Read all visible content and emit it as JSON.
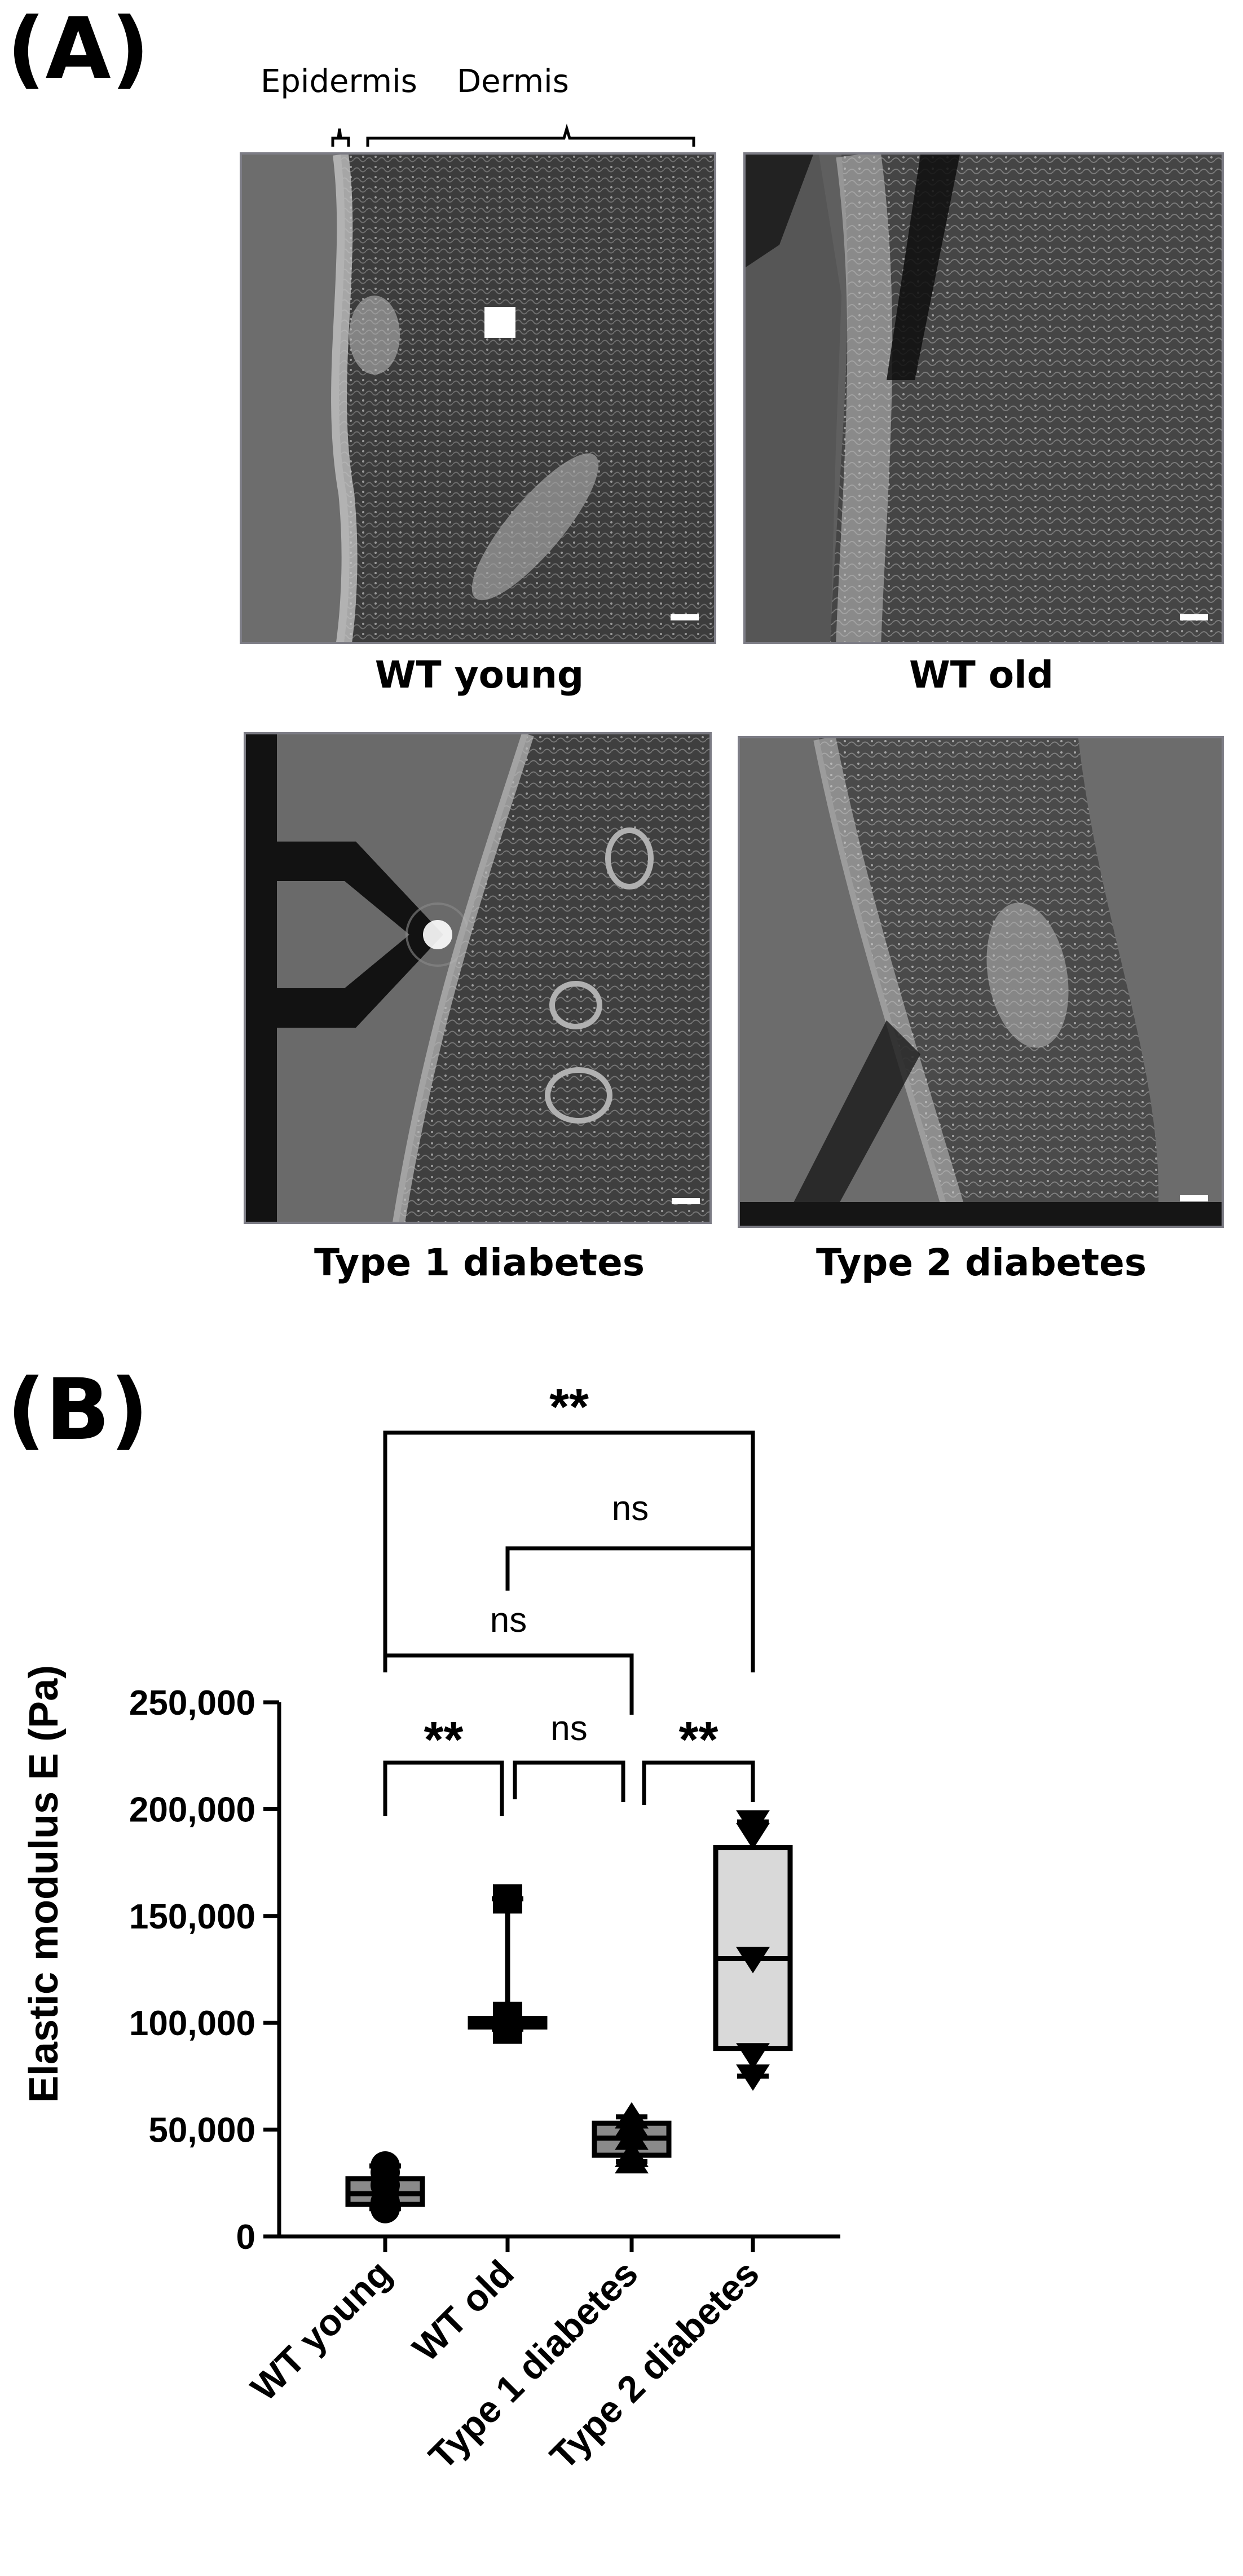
{
  "panel_a": {
    "label": "(A)",
    "annotations": {
      "epidermis": "Epidermis",
      "dermis": "Dermis"
    },
    "images": [
      {
        "caption": "WT young"
      },
      {
        "caption": "WT old"
      },
      {
        "caption": "Type 1 diabetes"
      },
      {
        "caption": "Type 2 diabetes"
      }
    ]
  },
  "panel_b": {
    "label": "(B)"
  },
  "chart_data": {
    "type": "box",
    "categories": [
      "WT young",
      "WT old",
      "Type 1 diabetes",
      "Type 2 diabetes"
    ],
    "ylabel": "Elastic modulus E (Pa)",
    "ylim": [
      0,
      250000
    ],
    "yticks": [
      0,
      50000,
      100000,
      150000,
      200000,
      250000
    ],
    "ytick_labels": [
      "0",
      "50,000",
      "100,000",
      "150,000",
      "200,000",
      "250,000"
    ],
    "boxes": [
      {
        "category": "WT young",
        "min": 13000,
        "q1": 15000,
        "median": 20000,
        "q3": 27000,
        "max": 33000,
        "fill": "#8a8a8a",
        "marker": "circle",
        "points": [
          13000,
          16000,
          24000,
          30000,
          33000
        ]
      },
      {
        "category": "WT old",
        "min": 97000,
        "q1": 98000,
        "median": 100000,
        "q3": 102000,
        "max": 158000,
        "fill": "#ffffff",
        "marker": "square",
        "points": [
          97000,
          100000,
          103000,
          158000
        ]
      },
      {
        "category": "Type 1 diabetes",
        "min": 35000,
        "q1": 38000,
        "median": 46000,
        "q3": 53000,
        "max": 56000,
        "fill": "#8a8a8a",
        "marker": "triangle-up",
        "points": [
          35000,
          38000,
          46000,
          52000,
          56000
        ]
      },
      {
        "category": "Type 2 diabetes",
        "min": 75000,
        "q1": 88000,
        "median": 130000,
        "q3": 182000,
        "max": 194000,
        "fill": "#d9d9d9",
        "marker": "triangle-down",
        "points": [
          75000,
          85000,
          130000,
          188000,
          194000
        ]
      }
    ],
    "comparisons": [
      {
        "from": "WT young",
        "to": "Type 2 diabetes",
        "label": "**"
      },
      {
        "from": "WT old",
        "to": "Type 2 diabetes",
        "label": "ns"
      },
      {
        "from": "WT young",
        "to": "Type 1 diabetes",
        "label": "ns"
      },
      {
        "from": "WT young",
        "to": "WT old",
        "label": "**"
      },
      {
        "from": "WT old",
        "to": "Type 1 diabetes",
        "label": "ns"
      },
      {
        "from": "Type 1 diabetes",
        "to": "Type 2 diabetes",
        "label": "**"
      }
    ]
  }
}
